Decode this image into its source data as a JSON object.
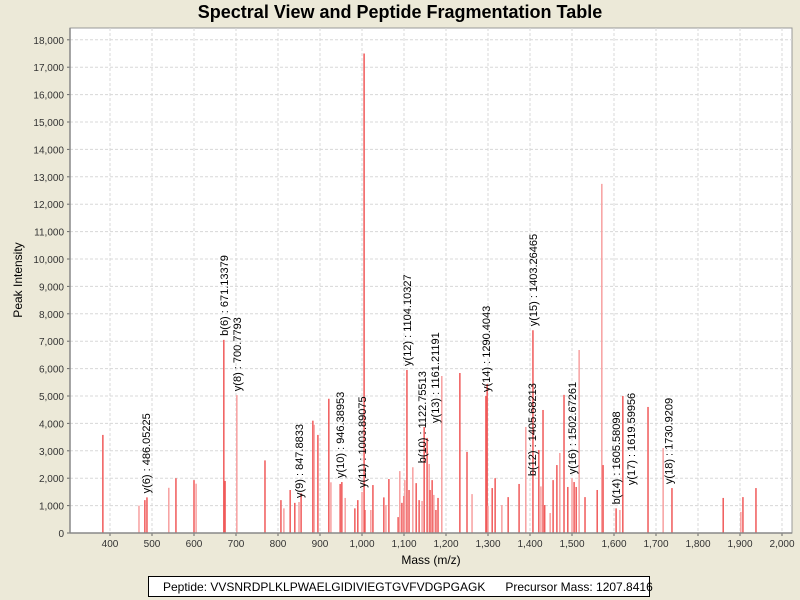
{
  "chart_data": {
    "type": "bar",
    "title": "Spectral View and Peptide Fragmentation Table",
    "xlabel": "Mass (m/z)",
    "ylabel": "Peak Intensity",
    "xlim": [
      305,
      2015
    ],
    "ylim": [
      0,
      18500
    ],
    "grid": true,
    "x_ticks": [
      400,
      500,
      600,
      700,
      800,
      900,
      1000,
      1100,
      1200,
      1300,
      1400,
      1500,
      1600,
      1700,
      1800,
      1900,
      2000
    ],
    "x_tick_labels": [
      "400",
      "500",
      "600",
      "700",
      "800",
      "900",
      "1,000",
      "1,100",
      "1,200",
      "1,300",
      "1,400",
      "1,500",
      "1,600",
      "1,700",
      "1,800",
      "1,900",
      "2,000"
    ],
    "y_ticks": [
      0,
      1000,
      2000,
      3000,
      4000,
      5000,
      6000,
      7000,
      8000,
      9000,
      10000,
      11000,
      12000,
      13000,
      14000,
      15000,
      16000,
      17000,
      18000
    ],
    "y_tick_labels": [
      "0",
      "1,000",
      "2,000",
      "3,000",
      "4,000",
      "5,000",
      "6,000",
      "7,000",
      "8,000",
      "9,000",
      "10,000",
      "11,000",
      "12,000",
      "13,000",
      "14,000",
      "15,000",
      "16,000",
      "17,000",
      "18,000"
    ],
    "peaks": [
      [
        383,
        3580
      ],
      [
        469,
        1000
      ],
      [
        483,
        1200
      ],
      [
        488,
        1300
      ],
      [
        540,
        1650
      ],
      [
        557,
        2000
      ],
      [
        600,
        1930
      ],
      [
        605,
        1800
      ],
      [
        671,
        7050
      ],
      [
        674,
        1900
      ],
      [
        702,
        5030
      ],
      [
        769,
        2650
      ],
      [
        807,
        1200
      ],
      [
        814,
        900
      ],
      [
        829,
        1570
      ],
      [
        840,
        1100
      ],
      [
        850,
        1130
      ],
      [
        855,
        1450
      ],
      [
        883,
        4100
      ],
      [
        886,
        3950
      ],
      [
        895,
        3580
      ],
      [
        921,
        4900
      ],
      [
        926,
        1850
      ],
      [
        948,
        1790
      ],
      [
        952,
        1860
      ],
      [
        960,
        1280
      ],
      [
        983,
        900
      ],
      [
        990,
        1200
      ],
      [
        1000,
        1500
      ],
      [
        1005,
        17500
      ],
      [
        1007,
        840
      ],
      [
        1021,
        840
      ],
      [
        1026,
        1750
      ],
      [
        1052,
        1300
      ],
      [
        1057,
        1020
      ],
      [
        1064,
        1970
      ],
      [
        1086,
        580
      ],
      [
        1090,
        2260
      ],
      [
        1095,
        1100
      ],
      [
        1100,
        1350
      ],
      [
        1102,
        1930
      ],
      [
        1107,
        5950
      ],
      [
        1112,
        1570
      ],
      [
        1121,
        2400
      ],
      [
        1129,
        1820
      ],
      [
        1136,
        1200
      ],
      [
        1143,
        1170
      ],
      [
        1148,
        3870
      ],
      [
        1155,
        3470
      ],
      [
        1160,
        2520
      ],
      [
        1162,
        1570
      ],
      [
        1167,
        1930
      ],
      [
        1171,
        1390
      ],
      [
        1176,
        840
      ],
      [
        1181,
        1280
      ],
      [
        1190,
        5730
      ],
      [
        1233,
        5840
      ],
      [
        1250,
        2960
      ],
      [
        1262,
        1420
      ],
      [
        1295,
        5000
      ],
      [
        1298,
        5440
      ],
      [
        1300,
        990
      ],
      [
        1310,
        1640
      ],
      [
        1317,
        2000
      ],
      [
        1333,
        1020
      ],
      [
        1348,
        1310
      ],
      [
        1374,
        1790
      ],
      [
        1390,
        3870
      ],
      [
        1407,
        7400
      ],
      [
        1421,
        3030
      ],
      [
        1426,
        1700
      ],
      [
        1431,
        4490
      ],
      [
        1435,
        1020
      ],
      [
        1448,
        730
      ],
      [
        1455,
        1930
      ],
      [
        1464,
        2480
      ],
      [
        1471,
        2920
      ],
      [
        1481,
        5040
      ],
      [
        1490,
        1680
      ],
      [
        1500,
        2000
      ],
      [
        1505,
        1860
      ],
      [
        1510,
        1680
      ],
      [
        1517,
        6680
      ],
      [
        1531,
        1310
      ],
      [
        1560,
        1570
      ],
      [
        1571,
        12740
      ],
      [
        1574,
        2480
      ],
      [
        1605,
        900
      ],
      [
        1614,
        840
      ],
      [
        1621,
        5000
      ],
      [
        1681,
        4600
      ],
      [
        1717,
        3100
      ],
      [
        1738,
        1640
      ],
      [
        1860,
        1280
      ],
      [
        1902,
        770
      ],
      [
        1907,
        1310
      ],
      [
        1938,
        1640
      ]
    ],
    "annotations": [
      {
        "text": "y(6) : 486.05225",
        "x": 486,
        "y": 1300
      },
      {
        "text": "b(6) : 671.13379",
        "x": 671,
        "y": 7050
      },
      {
        "text": "y(8) : 700.7793",
        "x": 702,
        "y": 5030
      },
      {
        "text": "y(9) : 847.8833",
        "x": 850,
        "y": 1130
      },
      {
        "text": "y(10) : 946.38953",
        "x": 948,
        "y": 1860
      },
      {
        "text": "y(11) : 1003.89075",
        "x": 1000,
        "y": 1500
      },
      {
        "text": "y(12) : 1104.10327",
        "x": 1107,
        "y": 5950
      },
      {
        "text": "b(10) : 1122.75513",
        "x": 1121,
        "y": 2400
      },
      {
        "text": "y(13) : 1161.21191",
        "x": 1160,
        "y": 3870
      },
      {
        "text": "y(14) : 1290.4043",
        "x": 1295,
        "y": 5000
      },
      {
        "text": "y(15) : 1403.26465",
        "x": 1407,
        "y": 7400
      },
      {
        "text": "b(12) : 1405.68213",
        "x": 1405,
        "y": 1930
      },
      {
        "text": "y(16) : 1502.67261",
        "x": 1500,
        "y": 2000
      },
      {
        "text": "b(14) : 1605.58098",
        "x": 1605,
        "y": 900
      },
      {
        "text": "y(17) : 1619.59956",
        "x": 1619,
        "y": 1600
      },
      {
        "text": "y(18) : 1730.9209",
        "x": 1730,
        "y": 1640
      }
    ],
    "colors": {
      "peak": "#f05a5a",
      "peak_light": "#f7a0a0"
    }
  },
  "legend": {
    "peptide_label": "Peptide: VVSNRDPLKLPWAELGIDIVIEGTGVFVDGPGAGK",
    "precursor_label": "Precursor Mass: 1207.8416"
  }
}
